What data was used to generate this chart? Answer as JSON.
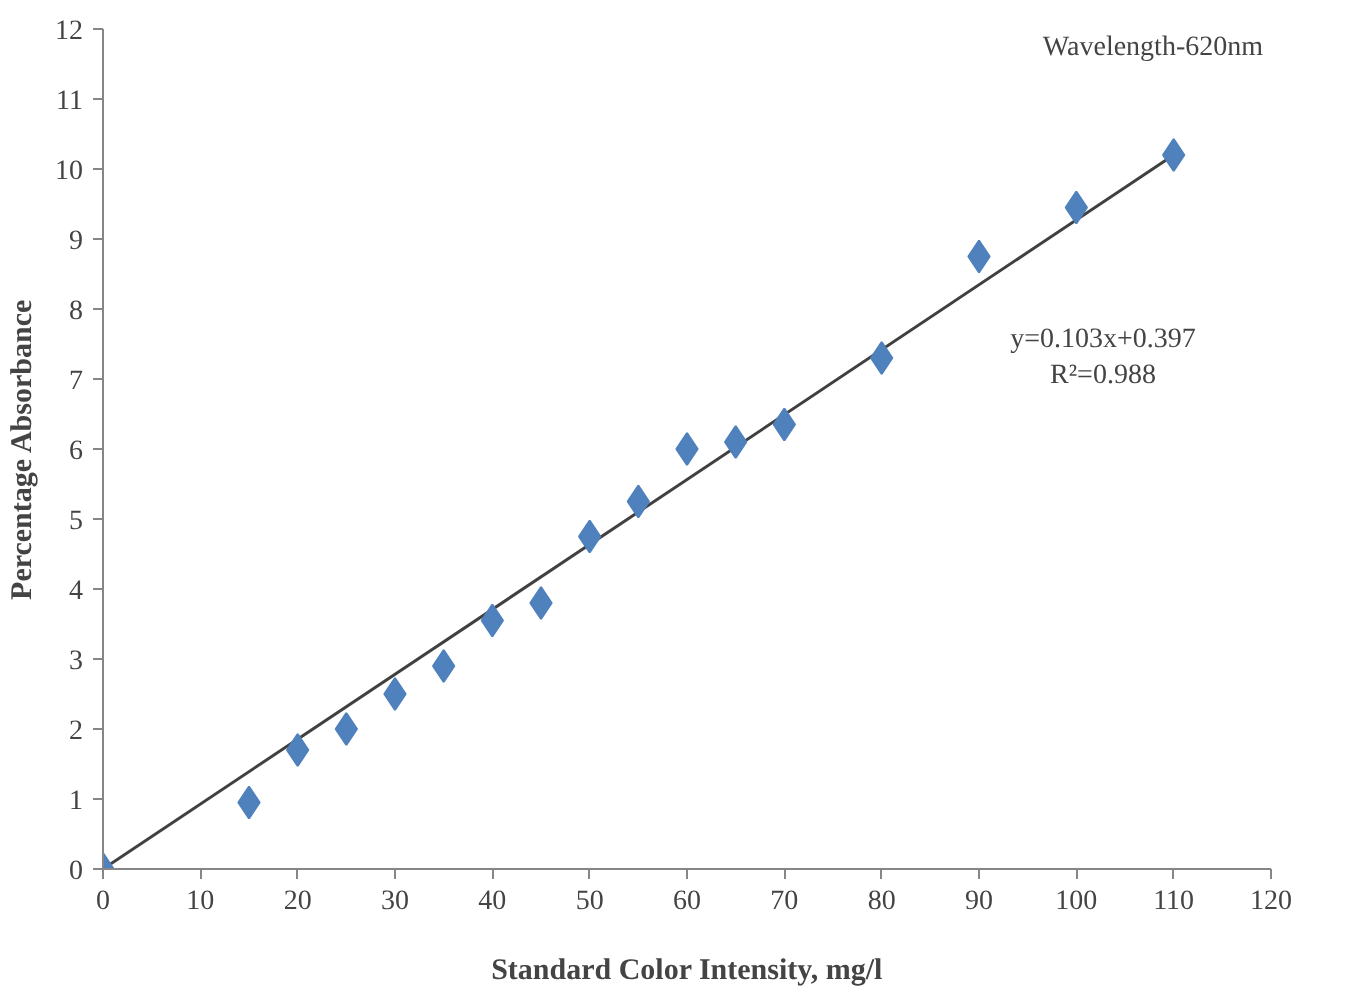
{
  "chart_data": {
    "type": "scatter",
    "xlabel": "Standard Color Intensity, mg/l",
    "ylabel": "Percentage Absorbance",
    "annotations": [
      "Wavelength-620nm",
      "y=0.103x+0.397\nR²=0.988"
    ],
    "xlim": [
      0,
      120
    ],
    "ylim": [
      0,
      12
    ],
    "xticks": [
      0,
      10,
      20,
      30,
      40,
      50,
      60,
      70,
      80,
      90,
      100,
      110,
      120
    ],
    "yticks": [
      0,
      1,
      2,
      3,
      4,
      5,
      6,
      7,
      8,
      9,
      10,
      11,
      12
    ],
    "grid": false,
    "marker": "diamond",
    "series": [
      {
        "type": "line",
        "color": "#404040",
        "x": [
          0,
          110
        ],
        "values": [
          0,
          10.2
        ],
        "marker": "none",
        "line_style": "solid"
      },
      {
        "color": "#4f81bd",
        "x": [
          0,
          15,
          20,
          25,
          30,
          35,
          40,
          45,
          50,
          55,
          60,
          65,
          70,
          80,
          90,
          100,
          110
        ],
        "values": [
          0,
          0.95,
          1.7,
          2.0,
          2.5,
          2.9,
          3.55,
          3.8,
          4.75,
          5.25,
          6.0,
          6.1,
          6.35,
          7.3,
          8.75,
          9.45,
          10.2
        ]
      }
    ]
  }
}
